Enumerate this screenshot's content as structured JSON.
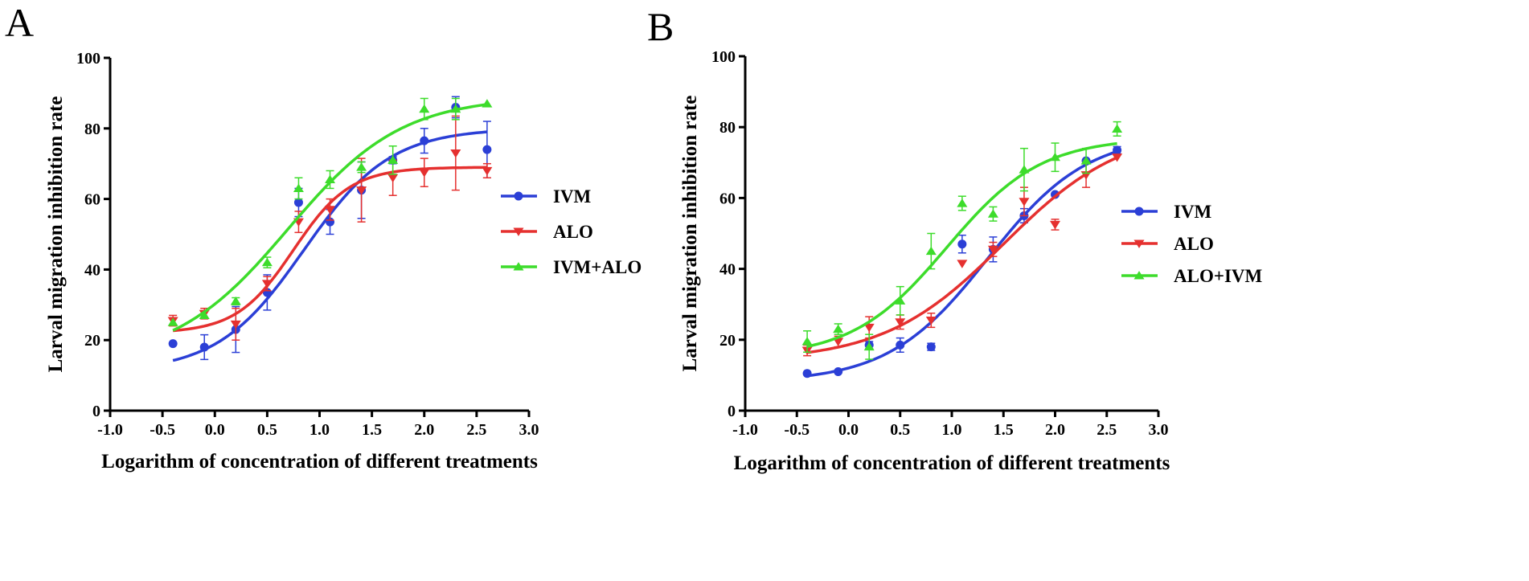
{
  "chart_data": [
    {
      "type": "line",
      "panel_label": "A",
      "xlabel": "Logarithm of concentration of different treatments",
      "ylabel": "Larval migration inhibition rate",
      "xlim": [
        -1.0,
        3.0
      ],
      "ylim": [
        0,
        100
      ],
      "xticks": [
        -1.0,
        -0.5,
        0.0,
        0.5,
        1.0,
        1.5,
        2.0,
        2.5,
        3.0
      ],
      "xtick_labels": [
        "-1.0",
        "-0.5",
        "0.0",
        "0.5",
        "1.0",
        "1.5",
        "2.0",
        "2.5",
        "3.0"
      ],
      "yticks": [
        0,
        20,
        40,
        60,
        80,
        100
      ],
      "ytick_labels": [
        "0",
        "20",
        "40",
        "60",
        "80",
        "100"
      ],
      "legend_position": "right",
      "series": [
        {
          "name": "IVM",
          "color": "#2b3fd6",
          "marker": "circle",
          "x": [
            -0.4,
            -0.1,
            0.2,
            0.5,
            0.8,
            1.1,
            1.4,
            1.7,
            2.0,
            2.3,
            2.6
          ],
          "y": [
            19,
            18,
            23,
            33.5,
            59,
            53.5,
            62.5,
            71,
            76.5,
            86,
            74
          ],
          "err": [
            0,
            3.5,
            6.5,
            5,
            4,
            3.5,
            8,
            1,
            3.5,
            3,
            8
          ],
          "fit": {
            "bottom": 11,
            "top": 80,
            "logEC50": 0.85,
            "hill": 1.05
          }
        },
        {
          "name": "ALO",
          "color": "#e5302f",
          "marker": "triangle-down",
          "x": [
            -0.4,
            -0.1,
            0.2,
            0.5,
            0.8,
            1.1,
            1.4,
            1.7,
            2.0,
            2.3,
            2.6
          ],
          "y": [
            25.5,
            27.5,
            24.5,
            36,
            53.5,
            57,
            62.5,
            66,
            67.5,
            73,
            68
          ],
          "err": [
            1.5,
            1.5,
            4.5,
            2,
            3,
            3,
            9,
            5,
            4,
            10.5,
            2
          ],
          "fit": {
            "bottom": 22,
            "top": 69,
            "logEC50": 0.75,
            "hill": 1.6
          }
        },
        {
          "name": "IVM+ALO",
          "color": "#3ddc2b",
          "marker": "triangle-up",
          "x": [
            -0.4,
            -0.1,
            0.2,
            0.5,
            0.8,
            1.1,
            1.4,
            1.7,
            2.0,
            2.3,
            2.6
          ],
          "y": [
            25,
            27,
            31,
            42,
            63,
            65.5,
            69,
            71,
            85.5,
            85.5,
            87
          ],
          "err": [
            0,
            0,
            1,
            1.5,
            3,
            2.5,
            1.5,
            4,
            3,
            3,
            0
          ],
          "fit": {
            "bottom": 14,
            "top": 89,
            "logEC50": 0.7,
            "hill": 0.8
          }
        }
      ]
    },
    {
      "type": "line",
      "panel_label": "B",
      "xlabel": "Logarithm of concentration of different treatments",
      "ylabel": "Larval migration inhibition rate",
      "xlim": [
        -1.0,
        3.0
      ],
      "ylim": [
        0,
        100
      ],
      "xticks": [
        -1.0,
        -0.5,
        0.0,
        0.5,
        1.0,
        1.5,
        2.0,
        2.5,
        3.0
      ],
      "xtick_labels": [
        "-1.0",
        "-0.5",
        "0.0",
        "0.5",
        "1.0",
        "1.5",
        "2.0",
        "2.5",
        "3.0"
      ],
      "yticks": [
        0,
        20,
        40,
        60,
        80,
        100
      ],
      "ytick_labels": [
        "0",
        "20",
        "40",
        "60",
        "80",
        "100"
      ],
      "legend_position": "right",
      "series": [
        {
          "name": "IVM",
          "color": "#2b3fd6",
          "marker": "circle",
          "x": [
            -0.4,
            -0.1,
            0.2,
            0.5,
            0.8,
            1.1,
            1.4,
            1.7,
            2.0,
            2.3,
            2.6
          ],
          "y": [
            10.5,
            11,
            18.5,
            18.5,
            18,
            47,
            45.5,
            55,
            61,
            70.5,
            73.5
          ],
          "err": [
            0,
            0,
            1,
            2,
            1,
            2.5,
            3.5,
            2,
            0,
            0,
            1
          ],
          "fit": {
            "bottom": 8,
            "top": 78,
            "logEC50": 1.35,
            "hill": 0.9
          }
        },
        {
          "name": "ALO",
          "color": "#e5302f",
          "marker": "triangle-down",
          "x": [
            -0.4,
            -0.1,
            0.2,
            0.5,
            0.8,
            1.1,
            1.4,
            1.7,
            2.0,
            2.3,
            2.6
          ],
          "y": [
            17,
            19.5,
            23.5,
            25,
            25.5,
            41.5,
            45.5,
            59,
            52.5,
            66.5,
            71.5
          ],
          "err": [
            1.5,
            1.5,
            3,
            2,
            2,
            0,
            2,
            4,
            1.5,
            3.5,
            0
          ],
          "fit": {
            "bottom": 14,
            "top": 80,
            "logEC50": 1.5,
            "hill": 0.75
          }
        },
        {
          "name": "ALO+IVM",
          "color": "#3ddc2b",
          "marker": "triangle-up",
          "x": [
            -0.4,
            -0.1,
            0.2,
            0.5,
            0.8,
            1.1,
            1.4,
            1.7,
            2.0,
            2.3,
            2.6
          ],
          "y": [
            19.5,
            23,
            18,
            31,
            45,
            58.5,
            55.5,
            68,
            71.5,
            70.5,
            79.5
          ],
          "err": [
            3,
            1.5,
            3.5,
            4,
            5,
            2,
            2,
            6,
            4,
            3.5,
            2
          ],
          "fit": {
            "bottom": 15,
            "top": 77,
            "logEC50": 0.95,
            "hill": 0.95
          }
        }
      ]
    }
  ]
}
